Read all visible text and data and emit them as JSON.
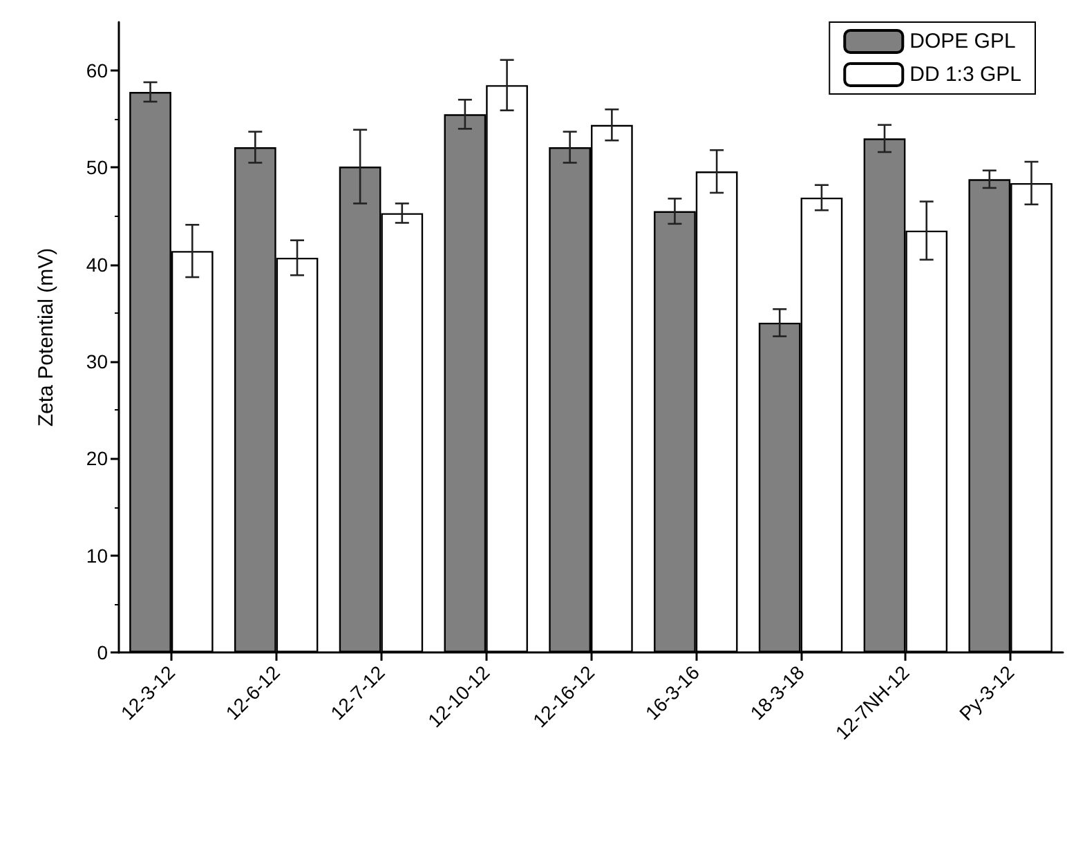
{
  "chart_data": {
    "type": "bar",
    "ylabel": "Zeta Potential (mV)",
    "categories": [
      "12-3-12",
      "12-6-12",
      "12-7-12",
      "12-10-12",
      "12-16-12",
      "16-3-16",
      "18-3-18",
      "12-7NH-12",
      "Py-3-12"
    ],
    "series": [
      {
        "name": "DOPE GPL",
        "color": "#808080",
        "values": [
          57.8,
          52.1,
          50.1,
          55.5,
          52.1,
          45.5,
          34.0,
          53.0,
          48.8
        ],
        "errors": [
          1.0,
          1.6,
          3.8,
          1.5,
          1.6,
          1.3,
          1.4,
          1.4,
          0.9
        ]
      },
      {
        "name": "DD 1:3 GPL",
        "color": "#ffffff",
        "values": [
          41.4,
          40.7,
          45.3,
          58.5,
          54.4,
          49.6,
          46.9,
          43.5,
          48.4
        ],
        "errors": [
          2.7,
          1.8,
          1.0,
          2.6,
          1.6,
          2.2,
          1.3,
          3.0,
          2.2
        ]
      }
    ],
    "ylim": [
      0,
      65
    ],
    "yticks": [
      0,
      10,
      20,
      30,
      40,
      50,
      60
    ],
    "grid": false,
    "legend": "top right"
  }
}
